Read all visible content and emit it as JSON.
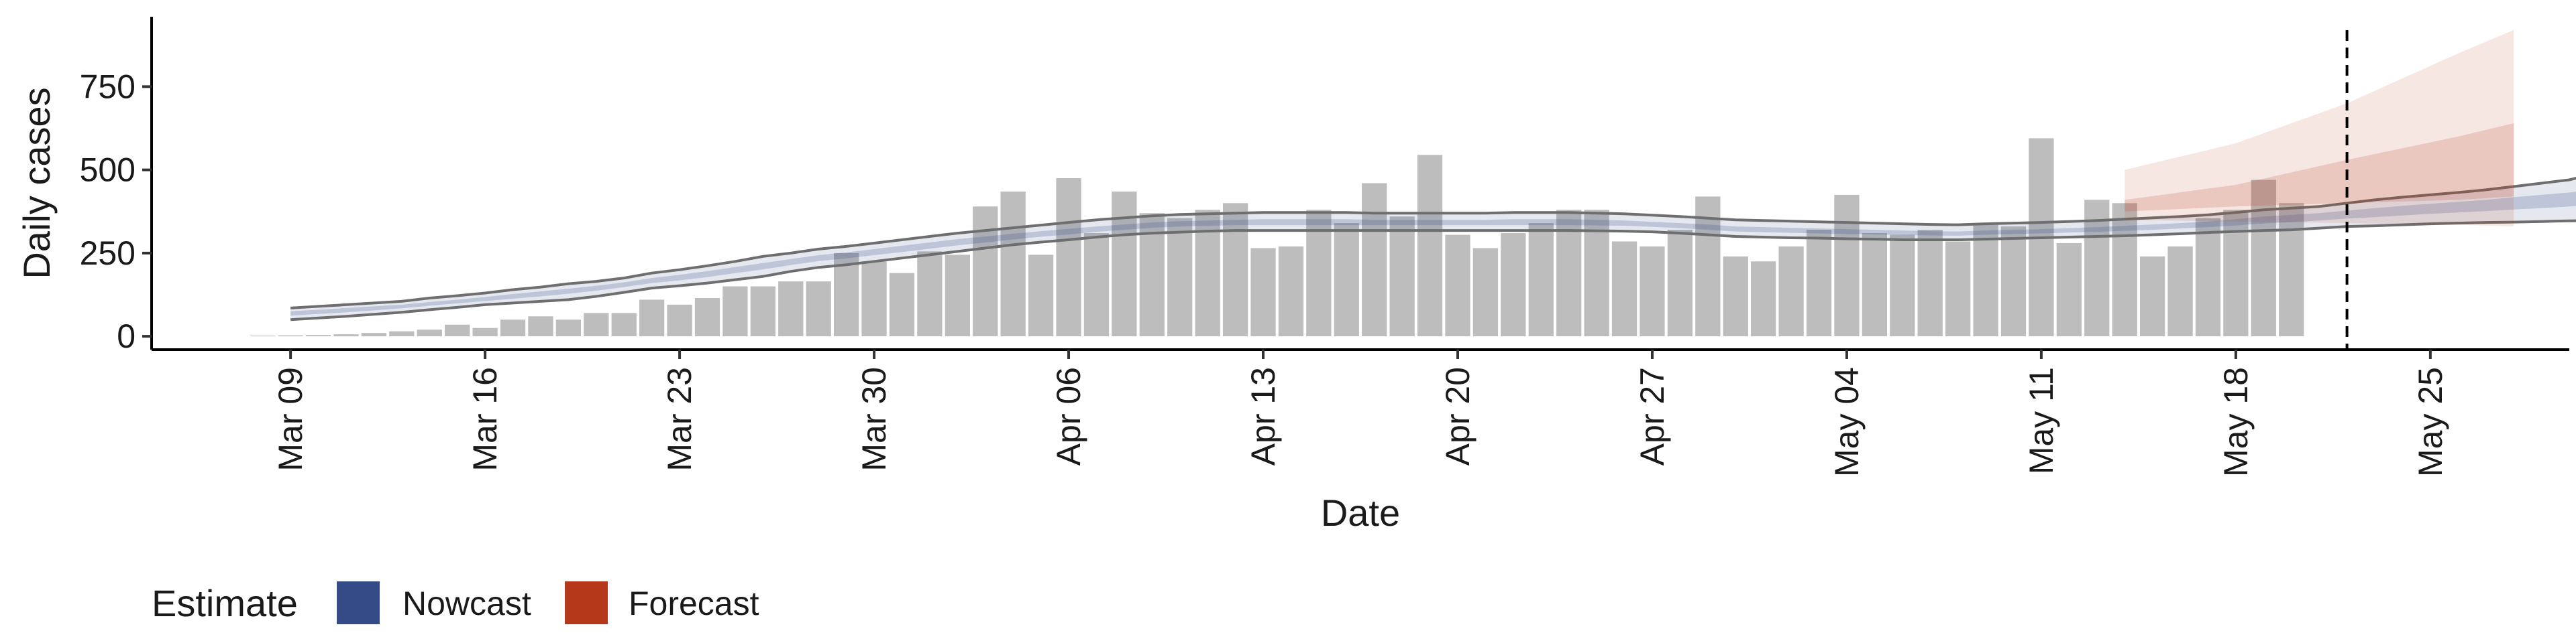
{
  "chart_data": {
    "type": "bar",
    "xlabel": "Date",
    "ylabel": "Daily cases",
    "ylim": [
      -40,
      960
    ],
    "yticks": [
      0,
      250,
      500,
      750
    ],
    "ytick_labels": [
      "0",
      "250",
      "500",
      "750"
    ],
    "xlim": [
      "2020-03-04",
      "2020-05-30"
    ],
    "xticks": [
      "2020-03-09",
      "2020-03-16",
      "2020-03-23",
      "2020-03-30",
      "2020-04-06",
      "2020-04-13",
      "2020-04-20",
      "2020-04-27",
      "2020-05-04",
      "2020-05-11",
      "2020-05-18",
      "2020-05-25"
    ],
    "xtick_labels": [
      "Mar 09",
      "Mar 16",
      "Mar 23",
      "Mar 30",
      "Apr 06",
      "Apr 13",
      "Apr 20",
      "Apr 27",
      "May 04",
      "May 11",
      "May 18",
      "May 25"
    ],
    "reference_line_date": "2020-05-22",
    "bar_color": "#bdbdbd",
    "observed_cases": {
      "start_date": "2020-03-08",
      "values": [
        2,
        3,
        4,
        6,
        10,
        15,
        20,
        35,
        25,
        50,
        60,
        50,
        70,
        70,
        110,
        95,
        115,
        150,
        150,
        165,
        165,
        250,
        225,
        190,
        255,
        245,
        390,
        435,
        245,
        475,
        310,
        435,
        370,
        355,
        380,
        400,
        265,
        270,
        380,
        340,
        460,
        360,
        545,
        305,
        265,
        310,
        340,
        380,
        380,
        285,
        270,
        320,
        420,
        240,
        225,
        270,
        320,
        425,
        310,
        305,
        320,
        285,
        335,
        330,
        595,
        280,
        410,
        400,
        240,
        270,
        355,
        380,
        470,
        400
      ]
    },
    "nowcast": {
      "name": "Nowcast",
      "color": "#354b87",
      "start_date": "2020-03-09",
      "upper": [
        85,
        90,
        95,
        100,
        105,
        115,
        122,
        130,
        140,
        148,
        158,
        165,
        175,
        190,
        200,
        212,
        225,
        240,
        250,
        262,
        270,
        280,
        290,
        300,
        310,
        318,
        326,
        334,
        342,
        350,
        356,
        362,
        366,
        368,
        370,
        372,
        372,
        372,
        372,
        370,
        370,
        370,
        370,
        370,
        372,
        372,
        372,
        370,
        368,
        364,
        360,
        355,
        350,
        348,
        346,
        344,
        342,
        340,
        338,
        336,
        335,
        338,
        340,
        342,
        345,
        348,
        352,
        356,
        360,
        365,
        372,
        380,
        385,
        390,
        400,
        410,
        418,
        425,
        432,
        440,
        450,
        460,
        470,
        490
      ],
      "lower": [
        50,
        55,
        60,
        66,
        72,
        80,
        87,
        95,
        100,
        105,
        110,
        120,
        132,
        145,
        152,
        160,
        170,
        180,
        195,
        207,
        215,
        225,
        235,
        245,
        255,
        265,
        275,
        283,
        290,
        298,
        305,
        310,
        313,
        316,
        318,
        318,
        318,
        318,
        318,
        318,
        318,
        318,
        318,
        318,
        318,
        318,
        318,
        317,
        316,
        314,
        310,
        305,
        300,
        298,
        296,
        295,
        293,
        292,
        290,
        290,
        290,
        292,
        294,
        296,
        298,
        300,
        302,
        305,
        308,
        312,
        315,
        318,
        320,
        325,
        330,
        332,
        335,
        338,
        340,
        342,
        343,
        345,
        347,
        348
      ],
      "mid_upper": [
        75,
        80,
        85,
        90,
        95,
        103,
        110,
        118,
        127,
        135,
        143,
        152,
        162,
        175,
        185,
        196,
        208,
        220,
        232,
        244,
        252,
        262,
        272,
        282,
        292,
        300,
        308,
        316,
        323,
        330,
        336,
        342,
        346,
        348,
        350,
        352,
        352,
        352,
        352,
        350,
        350,
        350,
        350,
        350,
        352,
        352,
        352,
        350,
        348,
        344,
        340,
        336,
        330,
        328,
        326,
        324,
        322,
        320,
        318,
        316,
        315,
        318,
        320,
        322,
        325,
        328,
        332,
        336,
        340,
        345,
        352,
        360,
        365,
        370,
        378,
        385,
        392,
        398,
        404,
        410,
        418,
        425,
        432,
        440
      ],
      "mid_lower": [
        62,
        67,
        72,
        78,
        84,
        92,
        99,
        106,
        113,
        120,
        128,
        137,
        148,
        160,
        168,
        178,
        190,
        201,
        214,
        226,
        234,
        244,
        253,
        263,
        273,
        282,
        291,
        299,
        306,
        314,
        320,
        326,
        330,
        332,
        334,
        334,
        334,
        334,
        334,
        334,
        334,
        334,
        334,
        334,
        334,
        334,
        334,
        333,
        332,
        329,
        325,
        320,
        315,
        313,
        311,
        309,
        307,
        306,
        304,
        303,
        302,
        305,
        307,
        309,
        312,
        314,
        317,
        320,
        324,
        328,
        333,
        339,
        343,
        348,
        354,
        358,
        363,
        368,
        372,
        376,
        381,
        385,
        390,
        395
      ]
    },
    "forecast": {
      "name": "Forecast",
      "color": "#b5381a",
      "dates": [
        "2020-05-14",
        "2020-05-18",
        "2020-05-22",
        "2020-05-26",
        "2020-05-28"
      ],
      "upper": [
        500,
        580,
        700,
        850,
        920
      ],
      "lower": [
        350,
        345,
        340,
        335,
        330
      ],
      "mid_upper": [
        410,
        455,
        530,
        600,
        640
      ],
      "mid_lower": [
        375,
        390,
        400,
        410,
        420
      ]
    },
    "legend": {
      "title": "Estimate",
      "position": "bottom-left",
      "items": [
        {
          "label": "Nowcast",
          "color": "#354b87"
        },
        {
          "label": "Forecast",
          "color": "#b5381a"
        }
      ]
    }
  }
}
